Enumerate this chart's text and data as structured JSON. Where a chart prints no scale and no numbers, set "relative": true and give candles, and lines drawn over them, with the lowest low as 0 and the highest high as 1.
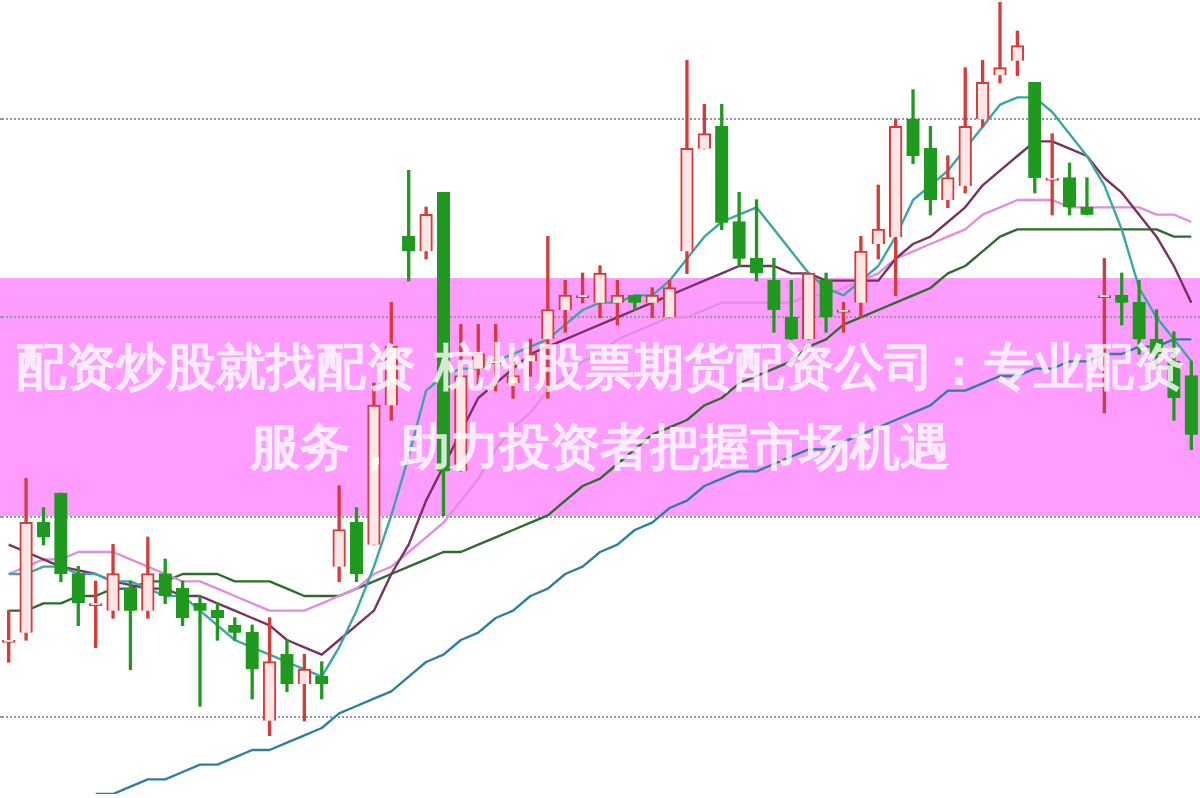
{
  "chart_data": {
    "type": "candlestick",
    "title": "配资炒股就找配资 杭州股票期货配资公司：专业配资服务，助力投资者把握市场机遇",
    "relative": true,
    "categories": [
      null,
      null,
      null,
      null,
      null,
      null,
      null,
      null,
      null,
      null,
      null,
      null,
      null,
      null,
      null,
      null,
      null,
      null,
      null,
      null,
      null,
      null,
      null,
      null,
      null,
      null,
      null,
      null,
      null,
      null,
      null,
      null,
      null,
      null,
      null,
      null,
      null,
      null,
      null,
      null,
      null,
      null,
      null,
      null,
      null,
      null,
      null,
      null,
      null,
      null,
      null,
      null,
      null,
      null,
      null,
      null,
      null,
      null,
      null,
      null,
      null,
      null,
      null,
      null,
      null,
      null,
      null,
      null,
      null
    ],
    "ohlc": [
      [
        0.13,
        0.17,
        0.1,
        0.13
      ],
      [
        0.14,
        0.35,
        0.13,
        0.29
      ],
      [
        0.29,
        0.31,
        0.26,
        0.27
      ],
      [
        0.33,
        0.33,
        0.21,
        0.22
      ],
      [
        0.22,
        0.23,
        0.15,
        0.18
      ],
      [
        0.18,
        0.21,
        0.12,
        0.18
      ],
      [
        0.17,
        0.26,
        0.16,
        0.22
      ],
      [
        0.2,
        0.21,
        0.09,
        0.17
      ],
      [
        0.17,
        0.27,
        0.16,
        0.22
      ],
      [
        0.22,
        0.24,
        0.18,
        0.19
      ],
      [
        0.2,
        0.21,
        0.15,
        0.16
      ],
      [
        0.18,
        0.19,
        0.04,
        0.17
      ],
      [
        0.17,
        0.18,
        0.13,
        0.16
      ],
      [
        0.15,
        0.16,
        0.13,
        0.14
      ],
      [
        0.14,
        0.15,
        0.05,
        0.09
      ],
      [
        0.02,
        0.16,
        0,
        0.1
      ],
      [
        0.11,
        0.13,
        0.06,
        0.07
      ],
      [
        0.07,
        0.11,
        0.02,
        0.09
      ],
      [
        0.08,
        0.1,
        0.05,
        0.07
      ],
      [
        0.23,
        0.34,
        0.21,
        0.28
      ],
      [
        0.29,
        0.31,
        0.21,
        0.22
      ],
      [
        0.26,
        0.48,
        0.26,
        0.45
      ],
      [
        0.45,
        0.59,
        0.43,
        0.53
      ],
      [
        0.68,
        0.77,
        0.62,
        0.66
      ],
      [
        0.66,
        0.72,
        0.65,
        0.71
      ],
      [
        0.74,
        0.74,
        0.3,
        0.36
      ],
      [
        0.36,
        0.56,
        0.36,
        0.49
      ],
      [
        0.5,
        0.56,
        0.48,
        0.52
      ],
      [
        0.51,
        0.56,
        0.47,
        0.51
      ],
      [
        0.48,
        0.52,
        0.46,
        0.49
      ],
      [
        0.51,
        0.54,
        0.49,
        0.52
      ],
      [
        0.54,
        0.68,
        0.46,
        0.58
      ],
      [
        0.58,
        0.62,
        0.55,
        0.6
      ],
      [
        0.6,
        0.63,
        0.59,
        0.6
      ],
      [
        0.59,
        0.64,
        0.57,
        0.63
      ],
      [
        0.59,
        0.62,
        0.56,
        0.6
      ],
      [
        0.6,
        0.6,
        0.58,
        0.59
      ],
      [
        0.59,
        0.61,
        0.57,
        0.6
      ],
      [
        0.57,
        0.62,
        0.57,
        0.61
      ],
      [
        0.66,
        0.92,
        0.63,
        0.8
      ],
      [
        0.8,
        0.86,
        0.8,
        0.82
      ],
      [
        0.83,
        0.86,
        0.69,
        0.7
      ],
      [
        0.7,
        0.74,
        0.64,
        0.65
      ],
      [
        0.65,
        0.73,
        0.62,
        0.63
      ],
      [
        0.62,
        0.65,
        0.55,
        0.58
      ],
      [
        0.57,
        0.62,
        0.54,
        0.54
      ],
      [
        0.54,
        0.63,
        0.54,
        0.63
      ],
      [
        0.62,
        0.63,
        0.55,
        0.57
      ],
      [
        0.58,
        0.59,
        0.55,
        0.58
      ],
      [
        0.59,
        0.68,
        0.57,
        0.66
      ],
      [
        0.67,
        0.75,
        0.65,
        0.69
      ],
      [
        0.68,
        0.84,
        0.6,
        0.83
      ],
      [
        0.84,
        0.88,
        0.78,
        0.79
      ],
      [
        0.8,
        0.83,
        0.71,
        0.73
      ],
      [
        0.73,
        0.79,
        0.72,
        0.76
      ],
      [
        0.75,
        0.91,
        0.74,
        0.83
      ],
      [
        0.84,
        0.92,
        0.83,
        0.89
      ],
      [
        0.9,
        1,
        0.89,
        0.91
      ],
      [
        0.92,
        0.96,
        0.9,
        0.94
      ],
      [
        0.89,
        0.89,
        0.74,
        0.76
      ],
      [
        0.76,
        0.82,
        0.71,
        0.76
      ],
      [
        0.76,
        0.78,
        0.71,
        0.72
      ],
      [
        0.72,
        0.76,
        0.71,
        0.71
      ],
      [
        0.6,
        0.65,
        0.44,
        0.6
      ],
      [
        0.6,
        0.63,
        0.56,
        0.59
      ],
      [
        0.59,
        0.62,
        0.52,
        0.54
      ],
      [
        0.54,
        0.58,
        0.5,
        0.52
      ],
      [
        0.51,
        0.55,
        0.43,
        0.46
      ],
      [
        0.49,
        0.51,
        0.39,
        0.41
      ]
    ],
    "series": [
      {
        "type": "line",
        "color": "#3aa6a6",
        "values": [
          0.22,
          0.22,
          0.23,
          0.23,
          0.22,
          0.22,
          0.21,
          0.21,
          0.2,
          0.19,
          0.19,
          0.17,
          0.15,
          0.13,
          0.12,
          0.11,
          0.1,
          0.09,
          0.08,
          0.12,
          0.17,
          0.23,
          0.3,
          0.38,
          0.47,
          0.49,
          0.5,
          0.5,
          null,
          0.52,
          0.53,
          0.54,
          0.56,
          0.58,
          0.59,
          0.59,
          0.6,
          0.6,
          0.62,
          0.65,
          0.68,
          0.7,
          0.71,
          0.72,
          0.69,
          0.66,
          0.63,
          0.61,
          0.6,
          0.62,
          0.64,
          0.68,
          0.73,
          0.75,
          0.77,
          0.8,
          0.83,
          0.86,
          0.87,
          0.87,
          0.85,
          0.82,
          0.79,
          0.75,
          0.69,
          0.61,
          0.57,
          0.54,
          0.51
        ]
      },
      {
        "type": "line",
        "color": "#7a3060",
        "values": [
          0.26,
          0.25,
          0.24,
          0.23,
          null,
          0.22,
          0.21,
          null,
          0.2,
          0.2,
          0.19,
          0.19,
          0.18,
          0.17,
          0.16,
          0.15,
          0.13,
          0.12,
          0.11,
          0.13,
          0.15,
          0.17,
          0.22,
          0.26,
          0.32,
          null,
          null,
          0.46,
          0.48,
          0.5,
          0.52,
          0.53,
          0.54,
          0.55,
          0.56,
          0.57,
          0.58,
          0.59,
          0.6,
          0.61,
          0.62,
          0.63,
          0.64,
          0.64,
          0.64,
          0.63,
          0.63,
          0.62,
          0.62,
          0.62,
          0.62,
          0.65,
          0.67,
          0.68,
          0.7,
          0.72,
          0.75,
          0.77,
          0.79,
          0.81,
          0.81,
          0.8,
          0.79,
          0.76,
          0.74,
          0.71,
          0.68,
          0.64,
          0.59
        ]
      },
      {
        "type": "line",
        "color": "#e08ee0",
        "values": [
          0.22,
          0.23,
          0.24,
          0.24,
          0.25,
          0.25,
          0.25,
          0.24,
          0.23,
          0.22,
          0.21,
          0.21,
          0.2,
          0.19,
          0.18,
          0.17,
          0.17,
          0.17,
          0.18,
          0.19,
          0.2,
          0.22,
          0.23,
          0.25,
          0.27,
          0.29,
          0.32,
          0.35,
          0.39,
          0.42,
          0.44,
          0.47,
          0.49,
          0.51,
          0.52,
          0.54,
          0.55,
          0.56,
          0.57,
          0.57,
          0.58,
          0.59,
          0.59,
          0.59,
          0.59,
          0.59,
          0.6,
          0.6,
          0.61,
          0.62,
          0.63,
          0.65,
          0.66,
          0.67,
          0.68,
          0.69,
          0.71,
          0.72,
          0.73,
          0.73,
          0.73,
          0.72,
          0.72,
          0.72,
          0.72,
          0.72,
          0.71,
          0.71,
          0.7
        ]
      },
      {
        "type": "line",
        "color": "#2f6b2f",
        "values": [
          0.17,
          0.17,
          0.18,
          0.18,
          0.19,
          0.19,
          0.2,
          0.2,
          0.21,
          0.21,
          0.22,
          0.22,
          0.22,
          0.21,
          0.21,
          0.21,
          0.2,
          0.19,
          0.19,
          0.19,
          0.2,
          0.21,
          0.22,
          0.23,
          0.24,
          0.25,
          0.25,
          0.26,
          0.27,
          0.28,
          0.29,
          0.3,
          0.32,
          0.34,
          0.35,
          0.37,
          0.39,
          0.41,
          0.42,
          0.43,
          0.45,
          0.46,
          0.48,
          0.49,
          0.5,
          0.51,
          0.53,
          0.54,
          0.56,
          0.57,
          0.58,
          0.59,
          0.6,
          0.61,
          0.63,
          0.64,
          0.66,
          0.68,
          0.69,
          0.69,
          0.69,
          0.69,
          0.69,
          0.69,
          0.69,
          0.69,
          0.69,
          0.68,
          0.68
        ]
      },
      {
        "type": "line",
        "color": "#2f7f9f",
        "values": [
          null,
          null,
          null,
          null,
          null,
          -0.08,
          -0.08,
          -0.07,
          -0.06,
          -0.06,
          -0.05,
          -0.04,
          -0.04,
          -0.03,
          -0.02,
          -0.02,
          -0.01,
          0,
          0.01,
          0.03,
          0.04,
          0.05,
          0.06,
          0.08,
          0.1,
          0.11,
          0.13,
          0.14,
          0.16,
          0.17,
          0.19,
          0.2,
          0.22,
          0.23,
          0.25,
          0.26,
          0.28,
          0.29,
          0.31,
          0.32,
          0.34,
          0.35,
          0.36,
          0.36,
          0.37,
          0.38,
          0.39,
          0.39,
          0.4,
          0.41,
          0.42,
          0.43,
          0.44,
          0.45,
          0.47,
          0.47,
          0.48,
          0.49,
          0.49,
          0.5,
          0.5,
          0.51,
          0.51,
          0.52,
          0.52,
          0.53,
          0.53,
          0.54,
          0.54
        ]
      }
    ]
  }
}
